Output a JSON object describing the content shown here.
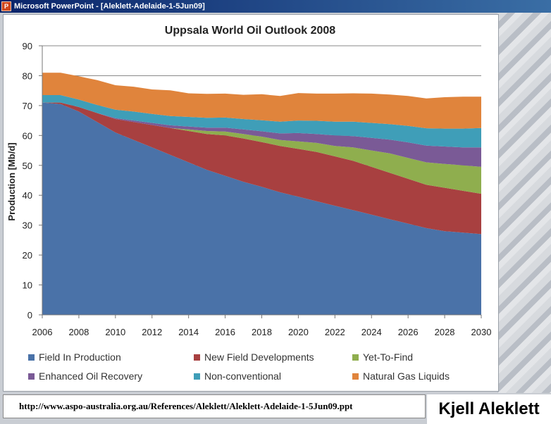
{
  "window": {
    "title": "Microsoft PowerPoint - [Aleklett-Adelaide-1-5Jun09]",
    "icon": "powerpoint-icon"
  },
  "footer": {
    "url": "http://www.aspo-australia.org.au/References/Aleklett/Aleklett-Adelaide-1-5Jun09.ppt",
    "author": "Kjell Aleklett"
  },
  "chart_data": {
    "type": "area",
    "stacked": true,
    "title": "Uppsala World Oil Outlook 2008",
    "ylabel": "Production [Mb/d]",
    "xlabel": "",
    "xlim": [
      2006,
      2030
    ],
    "ylim": [
      0,
      90
    ],
    "x_ticks": [
      "2006",
      "2008",
      "2010",
      "2012",
      "2014",
      "2016",
      "2018",
      "2020",
      "2022",
      "2024",
      "2026",
      "2028",
      "2030"
    ],
    "y_ticks": [
      "0",
      "10",
      "20",
      "30",
      "40",
      "50",
      "60",
      "70",
      "80",
      "90"
    ],
    "grid": "horizontal",
    "legend_position": "bottom",
    "x": [
      2006,
      2007,
      2008,
      2009,
      2010,
      2011,
      2012,
      2013,
      2014,
      2015,
      2016,
      2017,
      2018,
      2019,
      2020,
      2021,
      2022,
      2023,
      2024,
      2025,
      2026,
      2027,
      2028,
      2029,
      2030
    ],
    "series": [
      {
        "name": "Field In Production",
        "color": "#4a72a8",
        "values": [
          71,
          70.5,
          68,
          64.5,
          61,
          58.5,
          56,
          53.5,
          51,
          48.5,
          46.5,
          44.5,
          42.8,
          41,
          39.5,
          38,
          36.5,
          35,
          33.5,
          32,
          30.5,
          29,
          28,
          27.5,
          27
        ]
      },
      {
        "name": "New Field Developments",
        "color": "#a84040",
        "values": [
          0,
          0.5,
          1.5,
          3,
          4.5,
          6,
          7.5,
          9,
          10.5,
          12,
          13.5,
          14.5,
          15,
          15.5,
          16,
          16.5,
          16.5,
          16.5,
          16,
          15.5,
          15,
          14.5,
          14.5,
          14,
          13.5
        ]
      },
      {
        "name": "Yet-To-Find",
        "color": "#8fae4e",
        "values": [
          0,
          0,
          0,
          0,
          0,
          0,
          0,
          0,
          0.5,
          1,
          1.3,
          1.5,
          1.8,
          2,
          2.5,
          3,
          3.5,
          4.5,
          5.5,
          6.5,
          7,
          7.5,
          8,
          8.5,
          9
        ]
      },
      {
        "name": "Enhanced Oil Recovery",
        "color": "#7a5a96",
        "values": [
          0,
          0,
          0,
          0,
          0.3,
          0.5,
          0.7,
          0.9,
          1,
          1.1,
          1.3,
          1.5,
          1.8,
          2.2,
          2.8,
          3,
          3.5,
          3.8,
          4.2,
          4.6,
          5.2,
          5.6,
          5.8,
          6,
          6.5
        ]
      },
      {
        "name": "Non-conventional",
        "color": "#3f9eb8",
        "values": [
          2.5,
          2.5,
          2.5,
          2.7,
          2.8,
          3,
          3,
          3.1,
          3.2,
          3.3,
          3.4,
          3.5,
          3.7,
          3.9,
          4.2,
          4.4,
          4.6,
          4.8,
          5,
          5.2,
          5.5,
          5.8,
          6,
          6.3,
          6.5
        ]
      },
      {
        "name": "Natural Gas Liquids",
        "color": "#e0843c",
        "values": [
          7.5,
          7.5,
          7.8,
          8.3,
          8.2,
          8.3,
          8.2,
          8.6,
          7.9,
          8,
          8,
          8.1,
          8.7,
          8.6,
          9.2,
          9.1,
          9.4,
          9.5,
          9.8,
          9.9,
          10,
          10,
          10.5,
          10.7,
          10.5
        ]
      }
    ]
  }
}
